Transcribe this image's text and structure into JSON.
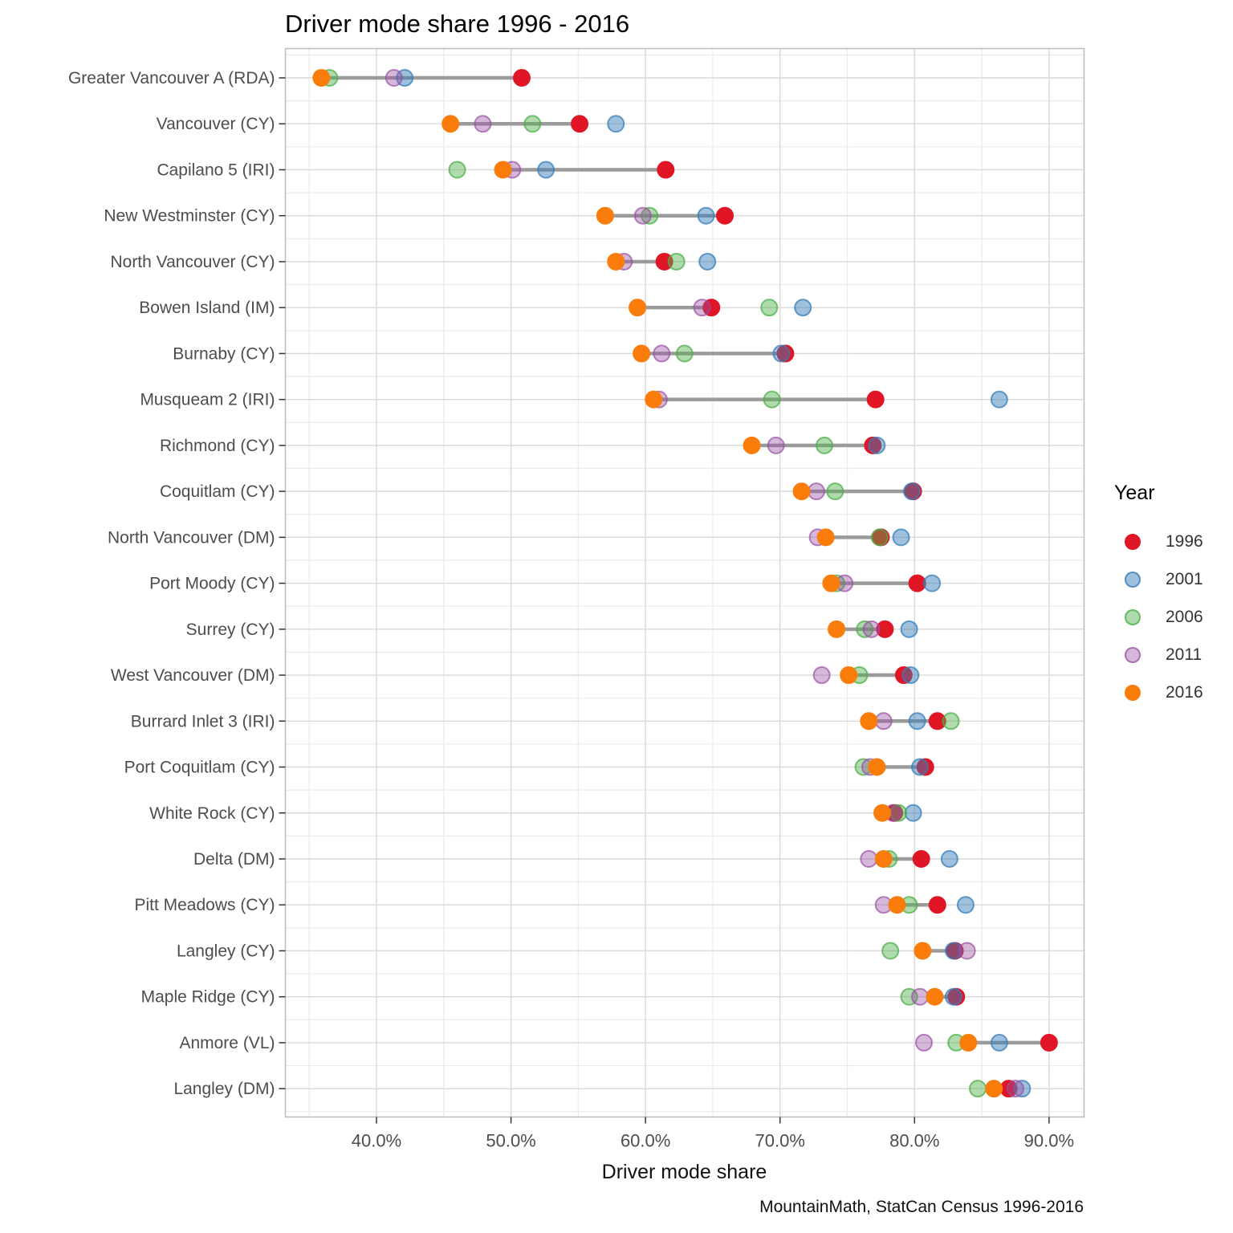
{
  "title": "Driver mode share 1996 - 2016",
  "caption": "MountainMath, StatCan Census 1996-2016",
  "axes": {
    "x_title": "Driver mode share",
    "x_tick_labels": [
      "40.0%",
      "50.0%",
      "60.0%",
      "70.0%",
      "80.0%",
      "90.0%"
    ]
  },
  "legend": {
    "title": "Year",
    "entries": [
      "1996",
      "2001",
      "2006",
      "2011",
      "2016"
    ]
  },
  "style": {
    "grid_major_color": "#d9d9d9",
    "grid_minor_color": "#ebebeb",
    "panel_border_color": "#bdbdbd",
    "tick_color": "#333333",
    "axis_text_color": "#4d4d4d",
    "connector_color": "#9b9b9b"
  },
  "chart_data": {
    "type": "scatter",
    "variant": "horizontal-dot-plot",
    "title": "Driver mode share 1996 - 2016",
    "xlabel": "Driver mode share",
    "x_unit": "percent",
    "xlim": [
      33.2,
      92.6
    ],
    "x_major_ticks": [
      40,
      50,
      60,
      70,
      80,
      90
    ],
    "x_minor_ticks": [
      35,
      45,
      55,
      65,
      75,
      85
    ],
    "grid": true,
    "legend_position": "right",
    "connector": {
      "from_series": "1996",
      "to_series": "2016"
    },
    "categories": [
      "Greater Vancouver A (RDA)",
      "Vancouver (CY)",
      "Capilano 5 (IRI)",
      "New Westminster (CY)",
      "North Vancouver (CY)",
      "Bowen Island (IM)",
      "Burnaby (CY)",
      "Musqueam 2 (IRI)",
      "Richmond (CY)",
      "Coquitlam (CY)",
      "North Vancouver (DM)",
      "Port Moody (CY)",
      "Surrey (CY)",
      "West Vancouver (DM)",
      "Burrard Inlet 3 (IRI)",
      "Port Coquitlam (CY)",
      "White Rock (CY)",
      "Delta (DM)",
      "Pitt Meadows (CY)",
      "Langley (CY)",
      "Maple Ridge (CY)",
      "Anmore (VL)",
      "Langley (DM)"
    ],
    "series": [
      {
        "name": "1996",
        "color": "#e01626",
        "fill_opacity": 1,
        "stroke_opacity": 1,
        "values": [
          50.8,
          55.1,
          61.5,
          65.9,
          61.4,
          64.9,
          70.4,
          77.1,
          76.9,
          79.9,
          77.5,
          80.2,
          77.8,
          79.2,
          81.7,
          80.8,
          78.5,
          80.5,
          81.7,
          83.0,
          83.1,
          90.0,
          87.0
        ]
      },
      {
        "name": "2001",
        "color": "#377eb8",
        "fill_opacity": 0.48,
        "stroke_opacity": 0.75,
        "values": [
          42.1,
          57.8,
          52.6,
          64.5,
          64.6,
          71.7,
          70.1,
          86.3,
          77.2,
          79.8,
          79.0,
          81.3,
          79.6,
          79.7,
          80.2,
          80.4,
          79.9,
          82.6,
          83.8,
          82.9,
          82.9,
          86.3,
          88.0
        ]
      },
      {
        "name": "2006",
        "color": "#4daf4a",
        "fill_opacity": 0.45,
        "stroke_opacity": 0.75,
        "values": [
          36.5,
          51.6,
          46.0,
          60.3,
          62.3,
          69.2,
          62.9,
          69.4,
          73.3,
          74.1,
          77.4,
          74.2,
          76.3,
          75.9,
          82.7,
          76.2,
          78.8,
          78.1,
          79.6,
          78.2,
          79.6,
          83.1,
          84.7
        ]
      },
      {
        "name": "2011",
        "color": "#984ea3",
        "fill_opacity": 0.4,
        "stroke_opacity": 0.7,
        "values": [
          41.3,
          47.9,
          50.1,
          59.8,
          58.4,
          64.2,
          61.2,
          61.0,
          69.7,
          72.7,
          72.8,
          74.8,
          76.8,
          73.1,
          77.7,
          76.7,
          78.4,
          76.6,
          77.7,
          83.9,
          80.4,
          80.7,
          87.5
        ]
      },
      {
        "name": "2016",
        "color": "#fa7d0c",
        "fill_opacity": 1,
        "stroke_opacity": 1,
        "values": [
          35.9,
          45.5,
          49.4,
          57.0,
          57.8,
          59.4,
          59.7,
          60.6,
          67.9,
          71.6,
          73.4,
          73.8,
          74.2,
          75.1,
          76.6,
          77.2,
          77.6,
          77.7,
          78.7,
          80.6,
          81.5,
          84.0,
          85.9
        ]
      }
    ]
  }
}
